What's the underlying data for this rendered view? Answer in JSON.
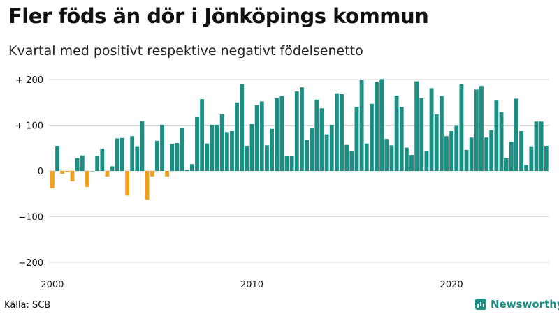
{
  "title": "Fler föds än dör i Jönköpings kommun",
  "subtitle": "Kvartal med positivt respektive negativt födelsenetto",
  "source": "Källa: SCB",
  "brand": "Newsworthy",
  "colors": {
    "positive": "#1b8f83",
    "negative": "#f0a01c",
    "grid": "#d9d9d9"
  },
  "chart_data": {
    "type": "bar",
    "x_start": "2000-Q1",
    "x_ticks": [
      "2000",
      "2010",
      "2020"
    ],
    "y_ticks": [
      "+ 200",
      "+ 100",
      "0",
      "−100",
      "−200"
    ],
    "y_tick_values": [
      200,
      100,
      0,
      -100,
      -200
    ],
    "ylim": [
      -210,
      210
    ],
    "grid": true,
    "values": [
      -38,
      55,
      -6,
      -3,
      -23,
      28,
      34,
      -35,
      0,
      33,
      49,
      -12,
      10,
      71,
      72,
      -54,
      76,
      54,
      109,
      -63,
      -12,
      66,
      101,
      -12,
      59,
      61,
      94,
      3,
      15,
      118,
      157,
      60,
      101,
      101,
      124,
      85,
      87,
      150,
      190,
      55,
      103,
      144,
      152,
      56,
      92,
      159,
      164,
      32,
      32,
      174,
      183,
      68,
      93,
      156,
      137,
      80,
      101,
      170,
      168,
      57,
      44,
      140,
      199,
      60,
      147,
      194,
      201,
      70,
      56,
      165,
      140,
      51,
      35,
      196,
      159,
      44,
      181,
      124,
      164,
      76,
      87,
      100,
      190,
      46,
      73,
      178,
      186,
      73,
      89,
      154,
      129,
      28,
      64,
      158,
      87,
      13,
      54,
      108,
      108,
      55
    ]
  }
}
